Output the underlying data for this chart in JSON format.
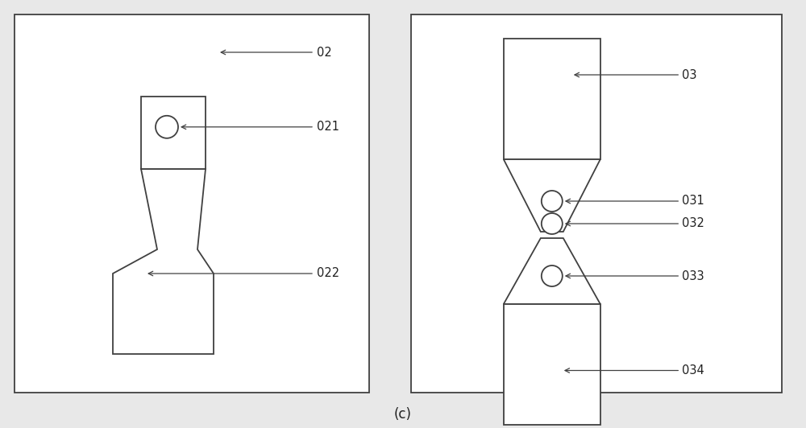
{
  "bg_color": "#e8e8e8",
  "panel_bg": "#ffffff",
  "line_color": "#404040",
  "label_color": "#202020",
  "title": "(c)",
  "title_fontsize": 12,
  "label_fontsize": 10.5
}
